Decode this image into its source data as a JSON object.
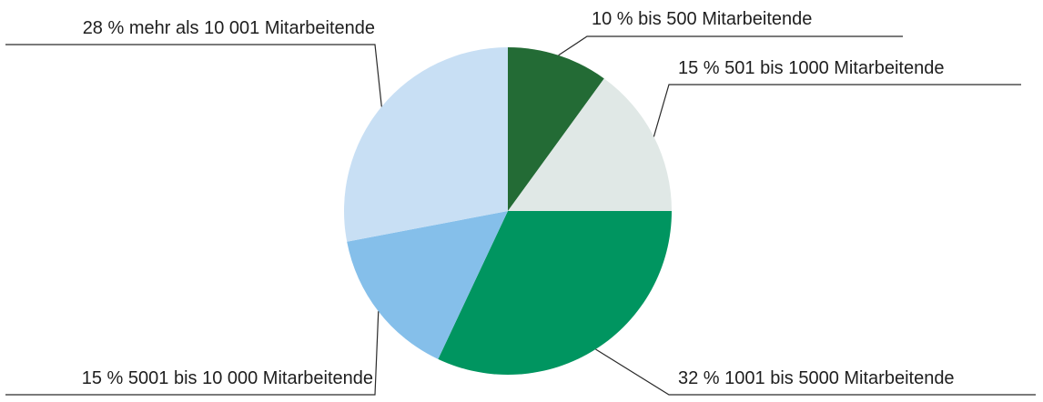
{
  "chart_data": {
    "type": "pie",
    "categories": [
      "bis 500 Mitarbeitende",
      "501 bis 1000 Mitarbeitende",
      "1001 bis 5000 Mitarbeitende",
      "5001 bis 10 000 Mitarbeitende",
      "mehr als 10 001 Mitarbeitende"
    ],
    "values": [
      10,
      15,
      32,
      15,
      28
    ],
    "value_labels": [
      "10 %",
      "15 %",
      "32 %",
      "15 %",
      "28 %"
    ],
    "colors": [
      "#236b35",
      "#e0e8e6",
      "#009560",
      "#85bfea",
      "#c8dff4"
    ]
  }
}
